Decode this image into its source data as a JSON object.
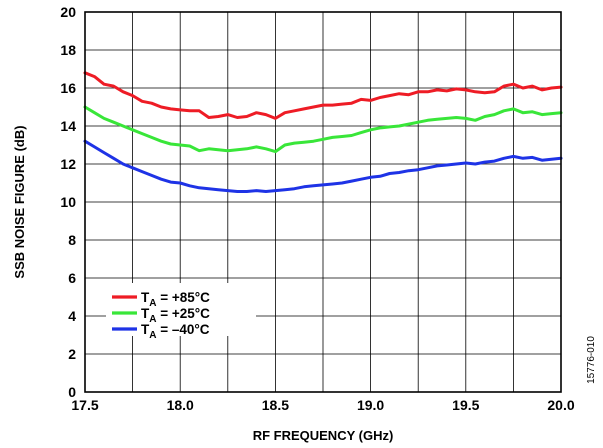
{
  "chart_data": {
    "type": "line",
    "xlabel": "RF FREQUENCY (GHz)",
    "ylabel": "SSB NOISE FIGURE (dB)",
    "xlim": [
      17.5,
      20.0
    ],
    "ylim": [
      0,
      20
    ],
    "x_ticks": [
      "17.5",
      "18.0",
      "18.5",
      "19.0",
      "19.5",
      "20.0"
    ],
    "y_ticks": [
      "0",
      "2",
      "4",
      "6",
      "8",
      "10",
      "12",
      "14",
      "16",
      "18",
      "20"
    ],
    "grid": true,
    "legend_position": "bottom-left",
    "figure_id": "15776-010",
    "series": [
      {
        "name": "+85°C",
        "label_main": "T",
        "label_sub": "A",
        "label_rest": " = +85°C",
        "color": "#ee1c25",
        "x": [
          17.5,
          17.55,
          17.6,
          17.65,
          17.7,
          17.75,
          17.8,
          17.85,
          17.9,
          17.95,
          18.0,
          18.05,
          18.1,
          18.15,
          18.2,
          18.25,
          18.3,
          18.35,
          18.4,
          18.45,
          18.5,
          18.55,
          18.6,
          18.65,
          18.7,
          18.75,
          18.8,
          18.85,
          18.9,
          18.95,
          19.0,
          19.05,
          19.1,
          19.15,
          19.2,
          19.25,
          19.3,
          19.35,
          19.4,
          19.45,
          19.5,
          19.55,
          19.6,
          19.65,
          19.7,
          19.75,
          19.8,
          19.85,
          19.9,
          19.95,
          20.0
        ],
        "values": [
          16.8,
          16.6,
          16.2,
          16.1,
          15.8,
          15.6,
          15.3,
          15.2,
          15.0,
          14.9,
          14.85,
          14.8,
          14.8,
          14.45,
          14.5,
          14.6,
          14.45,
          14.5,
          14.7,
          14.6,
          14.4,
          14.7,
          14.8,
          14.9,
          15.0,
          15.1,
          15.1,
          15.15,
          15.2,
          15.4,
          15.35,
          15.5,
          15.6,
          15.7,
          15.65,
          15.8,
          15.8,
          15.9,
          15.85,
          15.95,
          15.9,
          15.8,
          15.75,
          15.8,
          16.1,
          16.2,
          16.0,
          16.1,
          15.9,
          16.0,
          16.05
        ]
      },
      {
        "name": "+25°C",
        "label_main": "T",
        "label_sub": "A",
        "label_rest": " = +25°C",
        "color": "#39e639",
        "x": [
          17.5,
          17.55,
          17.6,
          17.65,
          17.7,
          17.75,
          17.8,
          17.85,
          17.9,
          17.95,
          18.0,
          18.05,
          18.1,
          18.15,
          18.2,
          18.25,
          18.3,
          18.35,
          18.4,
          18.45,
          18.5,
          18.55,
          18.6,
          18.65,
          18.7,
          18.75,
          18.8,
          18.85,
          18.9,
          18.95,
          19.0,
          19.05,
          19.1,
          19.15,
          19.2,
          19.25,
          19.3,
          19.35,
          19.4,
          19.45,
          19.5,
          19.55,
          19.6,
          19.65,
          19.7,
          19.75,
          19.8,
          19.85,
          19.9,
          19.95,
          20.0
        ],
        "values": [
          15.0,
          14.7,
          14.4,
          14.2,
          14.0,
          13.8,
          13.6,
          13.4,
          13.2,
          13.05,
          13.0,
          12.95,
          12.7,
          12.8,
          12.75,
          12.7,
          12.75,
          12.8,
          12.9,
          12.8,
          12.65,
          13.0,
          13.1,
          13.15,
          13.2,
          13.3,
          13.4,
          13.45,
          13.5,
          13.65,
          13.8,
          13.9,
          13.95,
          14.0,
          14.1,
          14.2,
          14.3,
          14.35,
          14.4,
          14.45,
          14.4,
          14.3,
          14.5,
          14.6,
          14.8,
          14.9,
          14.7,
          14.75,
          14.6,
          14.65,
          14.7
        ]
      },
      {
        "name": "–40°C",
        "label_main": "T",
        "label_sub": "A",
        "label_rest": " = –40°C",
        "color": "#1e33e6",
        "x": [
          17.5,
          17.55,
          17.6,
          17.65,
          17.7,
          17.75,
          17.8,
          17.85,
          17.9,
          17.95,
          18.0,
          18.05,
          18.1,
          18.15,
          18.2,
          18.25,
          18.3,
          18.35,
          18.4,
          18.45,
          18.5,
          18.55,
          18.6,
          18.65,
          18.7,
          18.75,
          18.8,
          18.85,
          18.9,
          18.95,
          19.0,
          19.05,
          19.1,
          19.15,
          19.2,
          19.25,
          19.3,
          19.35,
          19.4,
          19.45,
          19.5,
          19.55,
          19.6,
          19.65,
          19.7,
          19.75,
          19.8,
          19.85,
          19.9,
          19.95,
          20.0
        ],
        "values": [
          13.2,
          12.9,
          12.6,
          12.3,
          12.0,
          11.8,
          11.6,
          11.4,
          11.2,
          11.05,
          11.0,
          10.85,
          10.75,
          10.7,
          10.65,
          10.6,
          10.55,
          10.55,
          10.6,
          10.55,
          10.6,
          10.65,
          10.7,
          10.8,
          10.85,
          10.9,
          10.95,
          11.0,
          11.1,
          11.2,
          11.3,
          11.35,
          11.5,
          11.55,
          11.65,
          11.7,
          11.8,
          11.9,
          11.95,
          12.0,
          12.05,
          12.0,
          12.1,
          12.15,
          12.3,
          12.4,
          12.3,
          12.35,
          12.2,
          12.25,
          12.3
        ]
      }
    ]
  }
}
